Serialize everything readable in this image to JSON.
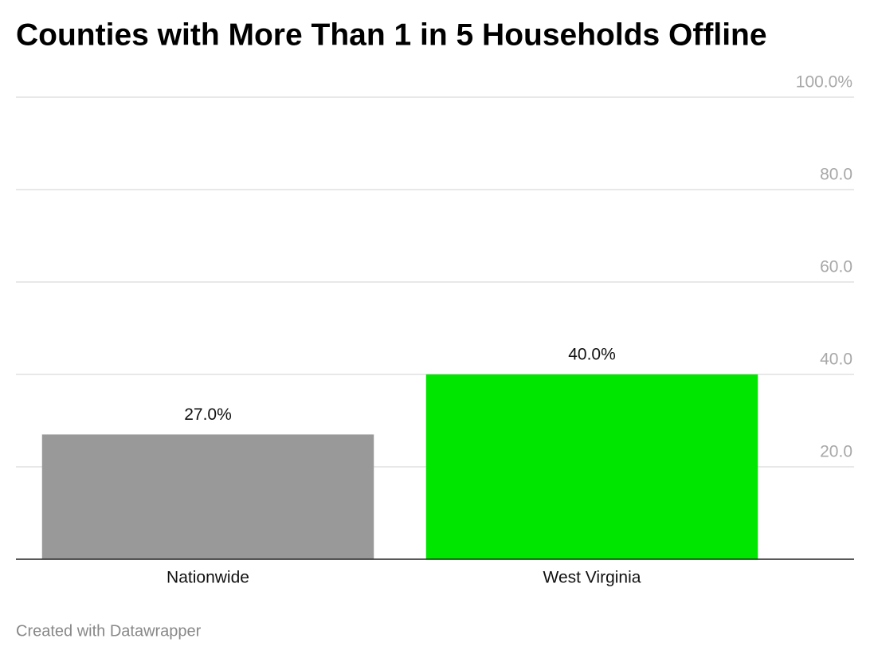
{
  "chart_data": {
    "type": "bar",
    "title": "Counties with More Than 1 in 5 Households Offline",
    "categories": [
      "Nationwide",
      "West Virginia"
    ],
    "values": [
      27.0,
      40.0
    ],
    "value_labels": [
      "27.0%",
      "40.0%"
    ],
    "colors": [
      "#999999",
      "#00e600"
    ],
    "ylim": [
      0,
      100
    ],
    "yticks": [
      {
        "value": 20,
        "label": "20.0"
      },
      {
        "value": 40,
        "label": "40.0"
      },
      {
        "value": 60,
        "label": "60.0"
      },
      {
        "value": 80,
        "label": "80.0"
      },
      {
        "value": 100,
        "label": "100.0%"
      }
    ],
    "grid": true,
    "footer": "Created with Datawrapper"
  }
}
